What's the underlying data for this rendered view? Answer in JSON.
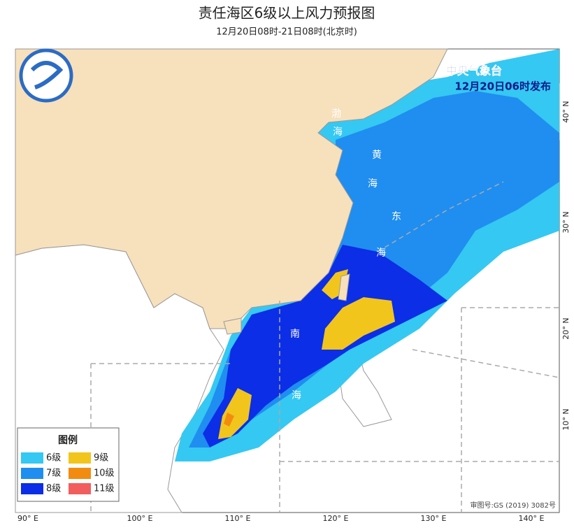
{
  "header": {
    "title": "责任海区6级以上风力预报图",
    "subtitle": "12月20日08时-21日08时(北京时)"
  },
  "issuer": {
    "name": "中央气象台",
    "time": "12月20日06时发布"
  },
  "legend": {
    "title": "图例",
    "items": [
      {
        "label": "6级",
        "color": "#35c8f2"
      },
      {
        "label": "7级",
        "color": "#1f8ef0"
      },
      {
        "label": "8级",
        "color": "#0b2ee6"
      },
      {
        "label": "9级",
        "color": "#f2c51c"
      },
      {
        "label": "10级",
        "color": "#f28c10"
      },
      {
        "label": "11级",
        "color": "#f25e5e"
      }
    ]
  },
  "sea_labels": [
    "渤",
    "海",
    "黄",
    "海",
    "东",
    "海",
    "南",
    "海"
  ],
  "lon_labels": [
    "90° E",
    "100° E",
    "110° E",
    "120° E",
    "130° E",
    "140° E"
  ],
  "lat_labels": [
    "40° N",
    "30° N",
    "20° N",
    "10° N"
  ],
  "approval": "审图号:GS (2019) 3082号"
}
